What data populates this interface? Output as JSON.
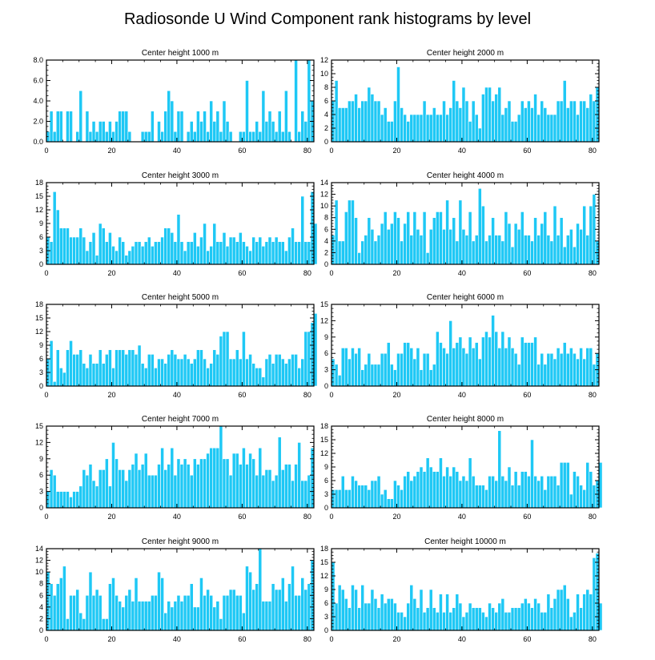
{
  "title": "Radiosonde U Wind Component rank histograms by level",
  "colors": {
    "bar": "#1ec8f5",
    "bar_edge": "#ffffff",
    "frame": "#000000"
  },
  "chart_data": [
    {
      "type": "bar",
      "title": "Center height 1000 m",
      "xlim": [
        0,
        82
      ],
      "ylim": [
        0,
        8
      ],
      "yticks": [
        0,
        2,
        4,
        6,
        8
      ],
      "ytick_labels": [
        "0.0",
        "2.0",
        "4.0",
        "6.0",
        "8.0"
      ],
      "xticks": [
        0,
        20,
        40,
        60,
        80
      ],
      "xtick_labels": [
        "0",
        "20",
        "40",
        "60",
        "80"
      ],
      "values": [
        1,
        3,
        1,
        3,
        3,
        0,
        3,
        3,
        0,
        1,
        5,
        0,
        3,
        1,
        2,
        1,
        2,
        2,
        1,
        2,
        1,
        2,
        3,
        3,
        3,
        1,
        0,
        0,
        0,
        1,
        1,
        1,
        3,
        0,
        2,
        1,
        3,
        5,
        4,
        1,
        3,
        3,
        0,
        1,
        2,
        1,
        3,
        2,
        3,
        1,
        4,
        2,
        3,
        1,
        4,
        2,
        1,
        0,
        0,
        1,
        1,
        6,
        1,
        1,
        2,
        1,
        5,
        2,
        3,
        2,
        1,
        3,
        1,
        5,
        1,
        0,
        8,
        1,
        3,
        2,
        8,
        4
      ]
    },
    {
      "type": "bar",
      "title": "Center height 2000 m",
      "xlim": [
        0,
        82
      ],
      "ylim": [
        0,
        12
      ],
      "yticks": [
        0,
        2,
        4,
        6,
        8,
        10,
        12
      ],
      "ytick_labels": [
        "0",
        "2",
        "4",
        "6",
        "8",
        "10",
        "12"
      ],
      "xticks": [
        0,
        20,
        40,
        60,
        80
      ],
      "xtick_labels": [
        "0",
        "20",
        "40",
        "60",
        "80"
      ],
      "values": [
        6,
        9,
        5,
        5,
        5,
        6,
        6,
        7,
        5,
        6,
        6,
        8,
        7,
        6,
        6,
        4,
        5,
        3,
        3,
        6,
        11,
        5,
        4,
        3,
        4,
        4,
        4,
        4,
        6,
        4,
        4,
        5,
        4,
        4,
        6,
        4,
        5,
        9,
        6,
        5,
        8,
        6,
        3,
        6,
        4,
        2,
        7,
        8,
        8,
        6,
        7,
        8,
        4,
        5,
        6,
        3,
        3,
        4,
        6,
        5,
        6,
        5,
        7,
        4,
        6,
        5,
        4,
        4,
        4,
        6,
        6,
        9,
        5,
        6,
        6,
        4,
        6,
        6,
        5,
        7,
        6,
        8
      ]
    },
    {
      "type": "bar",
      "title": "Center height 3000 m",
      "xlim": [
        0,
        82
      ],
      "ylim": [
        0,
        18
      ],
      "yticks": [
        0,
        3,
        6,
        9,
        12,
        15,
        18
      ],
      "ytick_labels": [
        "0",
        "3",
        "6",
        "9",
        "12",
        "15",
        "18"
      ],
      "xticks": [
        0,
        20,
        40,
        60,
        80
      ],
      "xtick_labels": [
        "0",
        "20",
        "40",
        "60",
        "80"
      ],
      "values": [
        6,
        5,
        16,
        12,
        8,
        8,
        8,
        6,
        6,
        6,
        8,
        6,
        3,
        5,
        7,
        2,
        9,
        8,
        5,
        7,
        4,
        3,
        6,
        5,
        2,
        3,
        4,
        5,
        5,
        4,
        5,
        6,
        4,
        5,
        5,
        6,
        8,
        8,
        7,
        5,
        11,
        5,
        3,
        5,
        5,
        7,
        4,
        6,
        9,
        3,
        4,
        9,
        5,
        5,
        7,
        4,
        6,
        6,
        5,
        7,
        5,
        4,
        3,
        6,
        5,
        6,
        4,
        5,
        6,
        5,
        6,
        5,
        5,
        3,
        6,
        8,
        5,
        5,
        15,
        5,
        5,
        16,
        9
      ]
    },
    {
      "type": "bar",
      "title": "Center height 4000 m",
      "xlim": [
        0,
        82
      ],
      "ylim": [
        0,
        14
      ],
      "yticks": [
        0,
        2,
        4,
        6,
        8,
        10,
        12,
        14
      ],
      "ytick_labels": [
        "0",
        "2",
        "4",
        "6",
        "8",
        "10",
        "12",
        "14"
      ],
      "xticks": [
        0,
        20,
        40,
        60,
        80
      ],
      "xtick_labels": [
        "0",
        "20",
        "40",
        "60",
        "80"
      ],
      "values": [
        5,
        11,
        4,
        4,
        9,
        11,
        11,
        8,
        2,
        4,
        5,
        8,
        6,
        4,
        5,
        7,
        9,
        6,
        7,
        9,
        8,
        4,
        7,
        9,
        5,
        9,
        6,
        5,
        9,
        2,
        6,
        8,
        9,
        9,
        6,
        11,
        6,
        8,
        4,
        11,
        6,
        5,
        9,
        4,
        5,
        13,
        10,
        4,
        5,
        8,
        5,
        5,
        4,
        9,
        7,
        3,
        7,
        6,
        9,
        5,
        5,
        4,
        8,
        5,
        7,
        9,
        5,
        4,
        10,
        5,
        8,
        3,
        5,
        6,
        3,
        7,
        6,
        10,
        5,
        10,
        12,
        4
      ]
    },
    {
      "type": "bar",
      "title": "Center height 5000 m",
      "xlim": [
        0,
        82
      ],
      "ylim": [
        0,
        18
      ],
      "yticks": [
        0,
        3,
        6,
        9,
        12,
        15,
        18
      ],
      "ytick_labels": [
        "0",
        "3",
        "6",
        "9",
        "12",
        "15",
        "18"
      ],
      "xticks": [
        0,
        20,
        40,
        60,
        80
      ],
      "xtick_labels": [
        "0",
        "20",
        "40",
        "60",
        "80"
      ],
      "values": [
        6,
        10,
        1,
        8,
        4,
        3,
        8,
        10,
        7,
        7,
        8,
        5,
        4,
        7,
        5,
        5,
        8,
        5,
        7,
        8,
        4,
        8,
        8,
        8,
        7,
        8,
        8,
        7,
        9,
        5,
        4,
        7,
        7,
        4,
        6,
        6,
        5,
        7,
        8,
        7,
        6,
        6,
        7,
        6,
        5,
        6,
        8,
        8,
        6,
        4,
        5,
        8,
        7,
        11,
        12,
        12,
        6,
        6,
        8,
        6,
        12,
        6,
        7,
        5,
        4,
        4,
        2,
        6,
        7,
        5,
        7,
        7,
        6,
        5,
        6,
        7,
        7,
        4,
        6,
        12,
        12,
        14,
        16
      ]
    },
    {
      "type": "bar",
      "title": "Center height 6000 m",
      "xlim": [
        0,
        82
      ],
      "ylim": [
        0,
        15
      ],
      "yticks": [
        0,
        3,
        6,
        9,
        12,
        15
      ],
      "ytick_labels": [
        "0",
        "3",
        "6",
        "9",
        "12",
        "15"
      ],
      "xticks": [
        0,
        20,
        40,
        60,
        80
      ],
      "xtick_labels": [
        "0",
        "20",
        "40",
        "60",
        "80"
      ],
      "values": [
        5,
        4,
        2,
        7,
        7,
        5,
        7,
        6,
        7,
        3,
        4,
        6,
        4,
        4,
        4,
        6,
        6,
        8,
        4,
        3,
        6,
        6,
        8,
        8,
        7,
        5,
        7,
        3,
        6,
        6,
        3,
        4,
        10,
        8,
        7,
        6,
        12,
        7,
        8,
        9,
        7,
        6,
        9,
        7,
        8,
        5,
        9,
        10,
        9,
        13,
        10,
        7,
        10,
        7,
        9,
        7,
        6,
        4,
        9,
        8,
        8,
        8,
        9,
        4,
        6,
        4,
        6,
        6,
        5,
        7,
        6,
        8,
        6,
        7,
        6,
        5,
        7,
        5,
        7,
        7,
        4,
        6
      ]
    },
    {
      "type": "bar",
      "title": "Center height 7000 m",
      "xlim": [
        0,
        82
      ],
      "ylim": [
        0,
        15
      ],
      "yticks": [
        0,
        3,
        6,
        9,
        12,
        15
      ],
      "ytick_labels": [
        "0",
        "3",
        "6",
        "9",
        "12",
        "15"
      ],
      "xticks": [
        0,
        20,
        40,
        60,
        80
      ],
      "xtick_labels": [
        "0",
        "20",
        "40",
        "60",
        "80"
      ],
      "values": [
        3,
        7,
        6,
        3,
        3,
        3,
        3,
        2,
        3,
        3,
        4,
        7,
        6,
        8,
        5,
        4,
        7,
        7,
        9,
        4,
        12,
        9,
        7,
        7,
        5,
        7,
        8,
        10,
        7,
        8,
        10,
        6,
        6,
        6,
        8,
        11,
        7,
        8,
        11,
        6,
        9,
        8,
        9,
        8,
        6,
        9,
        8,
        9,
        9,
        10,
        11,
        11,
        11,
        15,
        9,
        9,
        6,
        10,
        10,
        8,
        11,
        8,
        10,
        9,
        6,
        11,
        6,
        7,
        7,
        5,
        6,
        13,
        7,
        8,
        8,
        5,
        8,
        12,
        5,
        5,
        6,
        11
      ]
    },
    {
      "type": "bar",
      "title": "Center height 8000 m",
      "xlim": [
        0,
        82
      ],
      "ylim": [
        0,
        18
      ],
      "yticks": [
        0,
        3,
        6,
        9,
        12,
        15,
        18
      ],
      "ytick_labels": [
        "0",
        "3",
        "6",
        "9",
        "12",
        "15",
        "18"
      ],
      "xticks": [
        0,
        20,
        40,
        60,
        80
      ],
      "xtick_labels": [
        "0",
        "20",
        "40",
        "60",
        "80"
      ],
      "values": [
        4,
        4,
        4,
        7,
        4,
        4,
        7,
        6,
        5,
        5,
        5,
        4,
        6,
        6,
        7,
        3,
        4,
        2,
        2,
        6,
        5,
        4,
        7,
        8,
        6,
        7,
        8,
        9,
        8,
        11,
        9,
        8,
        8,
        11,
        7,
        9,
        7,
        9,
        8,
        6,
        7,
        6,
        11,
        7,
        5,
        5,
        5,
        4,
        7,
        7,
        6,
        17,
        7,
        6,
        9,
        5,
        8,
        5,
        8,
        8,
        7,
        15,
        7,
        6,
        7,
        4,
        7,
        7,
        7,
        5,
        10,
        10,
        10,
        3,
        8,
        7,
        5,
        4,
        10,
        8,
        5,
        6,
        10
      ]
    },
    {
      "type": "bar",
      "title": "Center height 9000 m",
      "xlim": [
        0,
        82
      ],
      "ylim": [
        0,
        14
      ],
      "yticks": [
        0,
        2,
        4,
        6,
        8,
        10,
        12,
        14
      ],
      "ytick_labels": [
        "0",
        "2",
        "4",
        "6",
        "8",
        "10",
        "12",
        "14"
      ],
      "xticks": [
        0,
        20,
        40,
        60,
        80
      ],
      "xtick_labels": [
        "0",
        "20",
        "40",
        "60",
        "80"
      ],
      "values": [
        10,
        8,
        6,
        8,
        9,
        11,
        2,
        6,
        6,
        7,
        3,
        2,
        6,
        10,
        6,
        7,
        6,
        2,
        2,
        8,
        9,
        6,
        5,
        4,
        6,
        7,
        5,
        9,
        5,
        5,
        5,
        5,
        6,
        6,
        10,
        9,
        3,
        5,
        4,
        5,
        6,
        5,
        6,
        6,
        8,
        4,
        4,
        9,
        6,
        7,
        6,
        4,
        5,
        2,
        6,
        6,
        7,
        7,
        6,
        6,
        3,
        11,
        10,
        7,
        8,
        14,
        5,
        5,
        5,
        8,
        7,
        7,
        9,
        5,
        8,
        11,
        6,
        6,
        9,
        7,
        8,
        12
      ]
    },
    {
      "type": "bar",
      "title": "Center height 10000 m",
      "xlim": [
        0,
        82
      ],
      "ylim": [
        0,
        18
      ],
      "yticks": [
        0,
        3,
        6,
        9,
        12,
        15,
        18
      ],
      "ytick_labels": [
        "0",
        "3",
        "6",
        "9",
        "12",
        "15",
        "18"
      ],
      "xticks": [
        0,
        20,
        40,
        60,
        80
      ],
      "xtick_labels": [
        "0",
        "20",
        "40",
        "60",
        "80"
      ],
      "values": [
        15,
        6,
        10,
        9,
        7,
        5,
        10,
        9,
        5,
        10,
        6,
        6,
        9,
        7,
        5,
        8,
        6,
        7,
        7,
        6,
        4,
        4,
        3,
        6,
        10,
        7,
        5,
        9,
        4,
        5,
        9,
        5,
        4,
        8,
        4,
        8,
        4,
        5,
        8,
        6,
        3,
        4,
        6,
        5,
        5,
        5,
        4,
        3,
        6,
        5,
        4,
        6,
        7,
        4,
        4,
        5,
        5,
        5,
        6,
        7,
        6,
        5,
        7,
        6,
        4,
        4,
        8,
        5,
        7,
        9,
        9,
        10,
        7,
        3,
        4,
        8,
        5,
        8,
        9,
        8,
        16,
        17,
        6
      ]
    }
  ]
}
